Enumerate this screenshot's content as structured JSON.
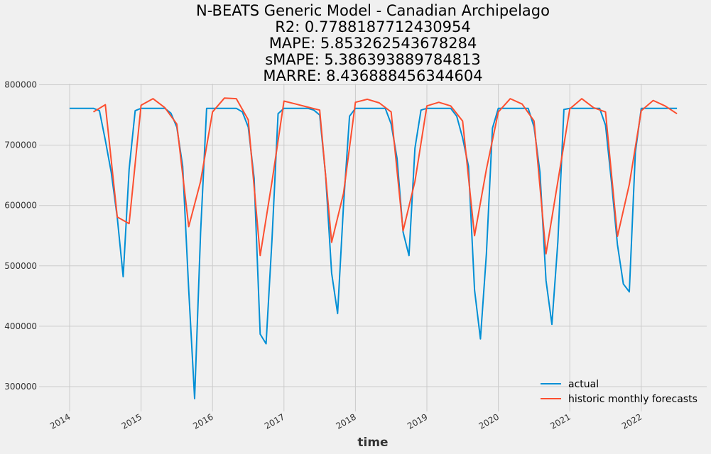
{
  "title_lines": [
    "N-BEATS Generic Model - Canadian Archipelago",
    "R2: 0.7788187712430954",
    "MAPE: 5.853262543678284",
    "sMAPE: 5.386393889784813",
    "MARRE: 8.436888456344604"
  ],
  "chart_data": {
    "type": "line",
    "title": "N-BEATS Generic Model - Canadian Archipelago\nR2: 0.7788187712430954\nMAPE: 5.853262543678284\nsMAPE: 5.386393889784813\nMARRE: 8.436888456344604",
    "xlabel": "time",
    "ylabel": "",
    "x_ticks": [
      "2014",
      "2015",
      "2016",
      "2017",
      "2018",
      "2019",
      "2020",
      "2021",
      "2022"
    ],
    "y_ticks": [
      300000,
      400000,
      500000,
      600000,
      700000,
      800000
    ],
    "x_range": [
      2013.7,
      2022.55
    ],
    "ylim": [
      257000,
      802000
    ],
    "grid": true,
    "legend_position": "bottom-right",
    "series": [
      {
        "name": "actual",
        "color": "#008fd5",
        "x": [
          2014.0,
          2014.083,
          2014.167,
          2014.25,
          2014.333,
          2014.417,
          2014.5,
          2014.583,
          2014.667,
          2014.75,
          2014.833,
          2014.917,
          2015.0,
          2015.083,
          2015.167,
          2015.25,
          2015.333,
          2015.417,
          2015.5,
          2015.583,
          2015.667,
          2015.75,
          2015.833,
          2015.917,
          2016.0,
          2016.083,
          2016.167,
          2016.25,
          2016.333,
          2016.417,
          2016.5,
          2016.583,
          2016.667,
          2016.75,
          2016.833,
          2016.917,
          2017.0,
          2017.083,
          2017.167,
          2017.25,
          2017.333,
          2017.417,
          2017.5,
          2017.583,
          2017.667,
          2017.75,
          2017.833,
          2017.917,
          2018.0,
          2018.083,
          2018.167,
          2018.25,
          2018.333,
          2018.417,
          2018.5,
          2018.583,
          2018.667,
          2018.75,
          2018.833,
          2018.917,
          2019.0,
          2019.083,
          2019.167,
          2019.25,
          2019.333,
          2019.417,
          2019.5,
          2019.583,
          2019.667,
          2019.75,
          2019.833,
          2019.917,
          2020.0,
          2020.083,
          2020.167,
          2020.25,
          2020.333,
          2020.417,
          2020.5,
          2020.583,
          2020.667,
          2020.75,
          2020.833,
          2020.917,
          2021.0,
          2021.083,
          2021.167,
          2021.25,
          2021.333,
          2021.417,
          2021.5,
          2021.583,
          2021.667,
          2021.75,
          2021.833,
          2021.917,
          2022.0,
          2022.083,
          2022.167,
          2022.25,
          2022.333,
          2022.417,
          2022.5
        ],
        "values": [
          761000,
          761000,
          761000,
          761000,
          761000,
          757000,
          708000,
          655000,
          580000,
          482000,
          660000,
          757000,
          761000,
          761000,
          761000,
          761000,
          761000,
          753000,
          730000,
          665000,
          460000,
          280000,
          555000,
          761000,
          761000,
          761000,
          761000,
          761000,
          761000,
          755000,
          730000,
          645000,
          387000,
          371000,
          545000,
          752000,
          761000,
          761000,
          761000,
          761000,
          761000,
          758000,
          750000,
          650000,
          488000,
          421000,
          600000,
          748000,
          761000,
          761000,
          761000,
          761000,
          761000,
          761000,
          735000,
          678000,
          556000,
          517000,
          695000,
          758000,
          761000,
          761000,
          761000,
          761000,
          761000,
          748000,
          712000,
          665000,
          460000,
          379000,
          520000,
          728000,
          761000,
          761000,
          761000,
          761000,
          761000,
          761000,
          730000,
          655000,
          476000,
          403000,
          540000,
          759000,
          761000,
          761000,
          761000,
          761000,
          761000,
          761000,
          733000,
          640000,
          535000,
          470000,
          457000,
          688000,
          761000,
          761000,
          761000,
          761000,
          761000,
          761000,
          761000
        ]
      },
      {
        "name": "historic monthly forecasts",
        "color": "#fc4f30",
        "x": [
          2014.333,
          2014.5,
          2014.667,
          2014.833,
          2015.0,
          2015.167,
          2015.333,
          2015.5,
          2015.667,
          2015.833,
          2016.0,
          2016.167,
          2016.333,
          2016.5,
          2016.667,
          2016.833,
          2017.0,
          2017.167,
          2017.333,
          2017.5,
          2017.667,
          2017.833,
          2018.0,
          2018.167,
          2018.333,
          2018.5,
          2018.667,
          2018.833,
          2019.0,
          2019.167,
          2019.333,
          2019.5,
          2019.667,
          2019.833,
          2020.0,
          2020.167,
          2020.333,
          2020.5,
          2020.667,
          2020.833,
          2021.0,
          2021.167,
          2021.333,
          2021.5,
          2021.667,
          2021.833,
          2022.0,
          2022.167,
          2022.333,
          2022.5
        ],
        "values": [
          755000,
          767000,
          581000,
          570000,
          766000,
          777000,
          762000,
          735000,
          565000,
          640000,
          755000,
          778000,
          777000,
          742000,
          517000,
          640000,
          773000,
          768000,
          763000,
          758000,
          539000,
          620000,
          771000,
          776000,
          770000,
          755000,
          558000,
          640000,
          765000,
          771000,
          765000,
          740000,
          550000,
          660000,
          755000,
          777000,
          768000,
          740000,
          520000,
          640000,
          760000,
          777000,
          762000,
          755000,
          549000,
          635000,
          757000,
          774000,
          765000,
          752000
        ]
      }
    ]
  }
}
